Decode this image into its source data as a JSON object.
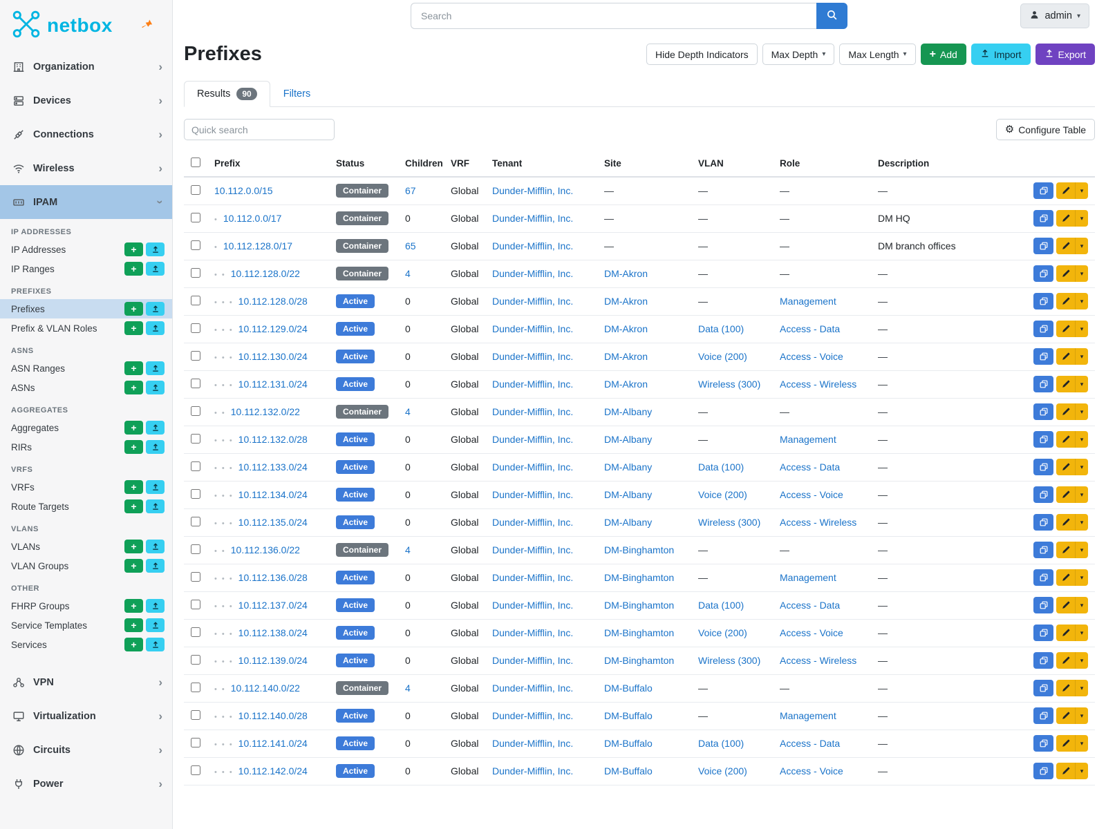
{
  "brand": {
    "logo_text": "netbox"
  },
  "topbar": {
    "search_placeholder": "Search",
    "user_label": "admin"
  },
  "sidebar": {
    "groups": [
      {
        "label": "Organization",
        "icon": "building"
      },
      {
        "label": "Devices",
        "icon": "server"
      },
      {
        "label": "Connections",
        "icon": "cable"
      },
      {
        "label": "Wireless",
        "icon": "wifi"
      },
      {
        "label": "IPAM",
        "icon": "ipam",
        "expanded": true,
        "sections": [
          {
            "heading": "IP ADDRESSES",
            "items": [
              {
                "label": "IP Addresses"
              },
              {
                "label": "IP Ranges"
              }
            ]
          },
          {
            "heading": "PREFIXES",
            "items": [
              {
                "label": "Prefixes",
                "active": true
              },
              {
                "label": "Prefix & VLAN Roles"
              }
            ]
          },
          {
            "heading": "ASNS",
            "items": [
              {
                "label": "ASN Ranges"
              },
              {
                "label": "ASNs"
              }
            ]
          },
          {
            "heading": "AGGREGATES",
            "items": [
              {
                "label": "Aggregates"
              },
              {
                "label": "RIRs"
              }
            ]
          },
          {
            "heading": "VRFS",
            "items": [
              {
                "label": "VRFs"
              },
              {
                "label": "Route Targets"
              }
            ]
          },
          {
            "heading": "VLANS",
            "items": [
              {
                "label": "VLANs"
              },
              {
                "label": "VLAN Groups"
              }
            ]
          },
          {
            "heading": "OTHER",
            "items": [
              {
                "label": "FHRP Groups"
              },
              {
                "label": "Service Templates"
              },
              {
                "label": "Services"
              }
            ]
          }
        ]
      },
      {
        "label": "VPN",
        "icon": "vpn"
      },
      {
        "label": "Virtualization",
        "icon": "monitor"
      },
      {
        "label": "Circuits",
        "icon": "circuit"
      },
      {
        "label": "Power",
        "icon": "power"
      }
    ]
  },
  "page": {
    "title": "Prefixes",
    "toolbar": {
      "hide_depth": "Hide Depth Indicators",
      "max_depth": "Max Depth",
      "max_length": "Max Length",
      "add": "Add",
      "import": "Import",
      "export": "Export"
    },
    "tabs": [
      {
        "label": "Results",
        "badge": "90",
        "active": true
      },
      {
        "label": "Filters"
      }
    ],
    "quick_search_placeholder": "Quick search",
    "configure_table": "Configure Table"
  },
  "table": {
    "columns": [
      "Prefix",
      "Status",
      "Children",
      "VRF",
      "Tenant",
      "Site",
      "VLAN",
      "Role",
      "Description"
    ],
    "rows": [
      {
        "prefix": "10.112.0.0/15",
        "depth": 0,
        "status": "Container",
        "children": "67",
        "vrf": "Global",
        "tenant": "Dunder-Mifflin, Inc.",
        "site": "—",
        "vlan": "—",
        "role": "—",
        "description": "—"
      },
      {
        "prefix": "10.112.0.0/17",
        "depth": 1,
        "status": "Container",
        "children": "0",
        "vrf": "Global",
        "tenant": "Dunder-Mifflin, Inc.",
        "site": "—",
        "vlan": "—",
        "role": "—",
        "description": "DM HQ"
      },
      {
        "prefix": "10.112.128.0/17",
        "depth": 1,
        "status": "Container",
        "children": "65",
        "vrf": "Global",
        "tenant": "Dunder-Mifflin, Inc.",
        "site": "—",
        "vlan": "—",
        "role": "—",
        "description": "DM branch offices"
      },
      {
        "prefix": "10.112.128.0/22",
        "depth": 2,
        "status": "Container",
        "children": "4",
        "vrf": "Global",
        "tenant": "Dunder-Mifflin, Inc.",
        "site": "DM-Akron",
        "vlan": "—",
        "role": "—",
        "description": "—"
      },
      {
        "prefix": "10.112.128.0/28",
        "depth": 3,
        "status": "Active",
        "children": "0",
        "vrf": "Global",
        "tenant": "Dunder-Mifflin, Inc.",
        "site": "DM-Akron",
        "vlan": "—",
        "role": "Management",
        "description": "—"
      },
      {
        "prefix": "10.112.129.0/24",
        "depth": 3,
        "status": "Active",
        "children": "0",
        "vrf": "Global",
        "tenant": "Dunder-Mifflin, Inc.",
        "site": "DM-Akron",
        "vlan": "Data (100)",
        "role": "Access - Data",
        "description": "—"
      },
      {
        "prefix": "10.112.130.0/24",
        "depth": 3,
        "status": "Active",
        "children": "0",
        "vrf": "Global",
        "tenant": "Dunder-Mifflin, Inc.",
        "site": "DM-Akron",
        "vlan": "Voice (200)",
        "role": "Access - Voice",
        "description": "—"
      },
      {
        "prefix": "10.112.131.0/24",
        "depth": 3,
        "status": "Active",
        "children": "0",
        "vrf": "Global",
        "tenant": "Dunder-Mifflin, Inc.",
        "site": "DM-Akron",
        "vlan": "Wireless (300)",
        "role": "Access - Wireless",
        "description": "—"
      },
      {
        "prefix": "10.112.132.0/22",
        "depth": 2,
        "status": "Container",
        "children": "4",
        "vrf": "Global",
        "tenant": "Dunder-Mifflin, Inc.",
        "site": "DM-Albany",
        "vlan": "—",
        "role": "—",
        "description": "—"
      },
      {
        "prefix": "10.112.132.0/28",
        "depth": 3,
        "status": "Active",
        "children": "0",
        "vrf": "Global",
        "tenant": "Dunder-Mifflin, Inc.",
        "site": "DM-Albany",
        "vlan": "—",
        "role": "Management",
        "description": "—"
      },
      {
        "prefix": "10.112.133.0/24",
        "depth": 3,
        "status": "Active",
        "children": "0",
        "vrf": "Global",
        "tenant": "Dunder-Mifflin, Inc.",
        "site": "DM-Albany",
        "vlan": "Data (100)",
        "role": "Access - Data",
        "description": "—"
      },
      {
        "prefix": "10.112.134.0/24",
        "depth": 3,
        "status": "Active",
        "children": "0",
        "vrf": "Global",
        "tenant": "Dunder-Mifflin, Inc.",
        "site": "DM-Albany",
        "vlan": "Voice (200)",
        "role": "Access - Voice",
        "description": "—"
      },
      {
        "prefix": "10.112.135.0/24",
        "depth": 3,
        "status": "Active",
        "children": "0",
        "vrf": "Global",
        "tenant": "Dunder-Mifflin, Inc.",
        "site": "DM-Albany",
        "vlan": "Wireless (300)",
        "role": "Access - Wireless",
        "description": "—"
      },
      {
        "prefix": "10.112.136.0/22",
        "depth": 2,
        "status": "Container",
        "children": "4",
        "vrf": "Global",
        "tenant": "Dunder-Mifflin, Inc.",
        "site": "DM-Binghamton",
        "vlan": "—",
        "role": "—",
        "description": "—"
      },
      {
        "prefix": "10.112.136.0/28",
        "depth": 3,
        "status": "Active",
        "children": "0",
        "vrf": "Global",
        "tenant": "Dunder-Mifflin, Inc.",
        "site": "DM-Binghamton",
        "vlan": "—",
        "role": "Management",
        "description": "—"
      },
      {
        "prefix": "10.112.137.0/24",
        "depth": 3,
        "status": "Active",
        "children": "0",
        "vrf": "Global",
        "tenant": "Dunder-Mifflin, Inc.",
        "site": "DM-Binghamton",
        "vlan": "Data (100)",
        "role": "Access - Data",
        "description": "—"
      },
      {
        "prefix": "10.112.138.0/24",
        "depth": 3,
        "status": "Active",
        "children": "0",
        "vrf": "Global",
        "tenant": "Dunder-Mifflin, Inc.",
        "site": "DM-Binghamton",
        "vlan": "Voice (200)",
        "role": "Access - Voice",
        "description": "—"
      },
      {
        "prefix": "10.112.139.0/24",
        "depth": 3,
        "status": "Active",
        "children": "0",
        "vrf": "Global",
        "tenant": "Dunder-Mifflin, Inc.",
        "site": "DM-Binghamton",
        "vlan": "Wireless (300)",
        "role": "Access - Wireless",
        "description": "—"
      },
      {
        "prefix": "10.112.140.0/22",
        "depth": 2,
        "status": "Container",
        "children": "4",
        "vrf": "Global",
        "tenant": "Dunder-Mifflin, Inc.",
        "site": "DM-Buffalo",
        "vlan": "—",
        "role": "—",
        "description": "—"
      },
      {
        "prefix": "10.112.140.0/28",
        "depth": 3,
        "status": "Active",
        "children": "0",
        "vrf": "Global",
        "tenant": "Dunder-Mifflin, Inc.",
        "site": "DM-Buffalo",
        "vlan": "—",
        "role": "Management",
        "description": "—"
      },
      {
        "prefix": "10.112.141.0/24",
        "depth": 3,
        "status": "Active",
        "children": "0",
        "vrf": "Global",
        "tenant": "Dunder-Mifflin, Inc.",
        "site": "DM-Buffalo",
        "vlan": "Data (100)",
        "role": "Access - Data",
        "description": "—"
      },
      {
        "prefix": "10.112.142.0/24",
        "depth": 3,
        "status": "Active",
        "children": "0",
        "vrf": "Global",
        "tenant": "Dunder-Mifflin, Inc.",
        "site": "DM-Buffalo",
        "vlan": "Voice (200)",
        "role": "Access - Voice",
        "description": "—"
      }
    ]
  },
  "colors": {
    "brand_teal": "#00b5e2",
    "link_blue": "#1a73c9",
    "active_badge_blue": "#3d7bd9",
    "container_badge_gray": "#6c757d",
    "add_green": "#169652",
    "import_cyan": "#36cff1",
    "export_purple": "#6f42c1",
    "edit_yellow": "#f2b50c",
    "sidebar_active_blue": "#a3c6e7",
    "pin_orange": "#fd7e14"
  }
}
